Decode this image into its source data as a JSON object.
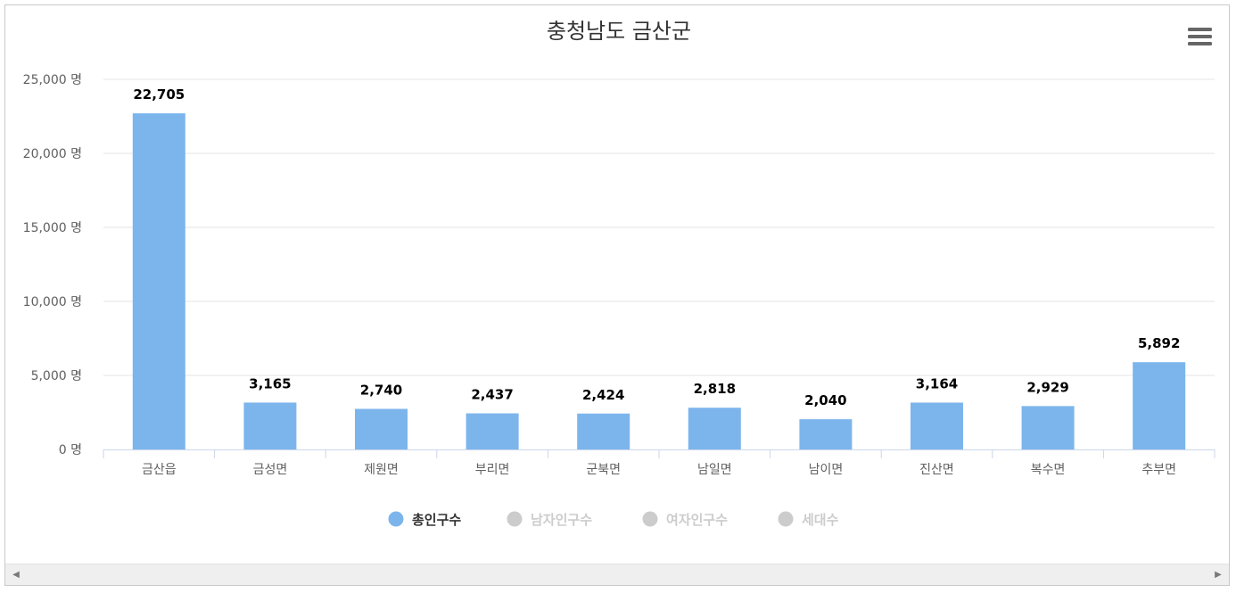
{
  "chart_data": {
    "type": "bar",
    "title": "충청남도 금산군",
    "categories": [
      "금산읍",
      "금성면",
      "제원면",
      "부리면",
      "군북면",
      "남일면",
      "남이면",
      "진산면",
      "복수면",
      "추부면"
    ],
    "series": [
      {
        "name": "총인구수",
        "values": [
          22705,
          3165,
          2740,
          2437,
          2424,
          2818,
          2040,
          3164,
          2929,
          5892
        ],
        "color": "#7cb5ec",
        "visible": true
      }
    ],
    "data_labels": [
      "22,705",
      "3,165",
      "2,740",
      "2,437",
      "2,424",
      "2,818",
      "2,040",
      "3,164",
      "2,929",
      "5,892"
    ],
    "y_ticks": [
      0,
      5000,
      10000,
      15000,
      20000,
      25000
    ],
    "y_tick_labels": [
      "0 명",
      "5,000 명",
      "10,000 명",
      "15,000 명",
      "20,000 명",
      "25,000 명"
    ],
    "ylim": [
      0,
      25000
    ],
    "grid": true,
    "legend_placement": "bottom-center",
    "legend": [
      {
        "name": "총인구수",
        "active": true,
        "color": "#7cb5ec"
      },
      {
        "name": "남자인구수",
        "active": false,
        "color": "#cccccc"
      },
      {
        "name": "여자인구수",
        "active": false,
        "color": "#cccccc"
      },
      {
        "name": "세대수",
        "active": false,
        "color": "#cccccc"
      }
    ]
  },
  "toolbar": {
    "menu_icon": "hamburger-menu-icon"
  },
  "scrollbar": {
    "left_icon": "◀",
    "right_icon": "▶"
  }
}
